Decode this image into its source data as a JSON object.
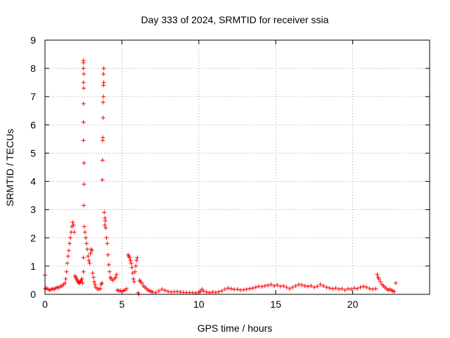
{
  "chart_data": {
    "type": "scatter",
    "title": "Day 333 of 2024, SRMTID for receiver ssia",
    "xlabel": "GPS time / hours",
    "ylabel": "SRMTID / TECUs",
    "xlim": [
      0,
      25
    ],
    "ylim": [
      0,
      9
    ],
    "x_ticks": [
      0,
      5,
      10,
      15,
      20
    ],
    "y_ticks": [
      0,
      1,
      2,
      3,
      4,
      5,
      6,
      7,
      8,
      9
    ],
    "grid": true,
    "marker": "plus",
    "color": "#ff0000",
    "series": [
      {
        "name": "SRMTID",
        "points": [
          [
            0.0,
            0.68
          ],
          [
            0.02,
            0.2
          ],
          [
            0.1,
            0.22
          ],
          [
            0.2,
            0.18
          ],
          [
            0.3,
            0.15
          ],
          [
            0.4,
            0.17
          ],
          [
            0.5,
            0.2
          ],
          [
            0.6,
            0.18
          ],
          [
            0.7,
            0.22
          ],
          [
            0.8,
            0.25
          ],
          [
            0.9,
            0.23
          ],
          [
            1.0,
            0.28
          ],
          [
            1.1,
            0.3
          ],
          [
            1.2,
            0.35
          ],
          [
            1.3,
            0.4
          ],
          [
            1.35,
            0.55
          ],
          [
            1.4,
            0.8
          ],
          [
            1.45,
            1.1
          ],
          [
            1.5,
            1.35
          ],
          [
            1.55,
            1.55
          ],
          [
            1.6,
            1.8
          ],
          [
            1.65,
            2.0
          ],
          [
            1.7,
            2.2
          ],
          [
            1.75,
            2.4
          ],
          [
            1.8,
            2.55
          ],
          [
            1.85,
            2.45
          ],
          [
            1.9,
            2.2
          ],
          [
            1.95,
            0.65
          ],
          [
            2.0,
            0.6
          ],
          [
            2.05,
            0.55
          ],
          [
            2.1,
            0.5
          ],
          [
            2.15,
            0.45
          ],
          [
            2.2,
            0.4
          ],
          [
            2.25,
            0.42
          ],
          [
            2.3,
            0.45
          ],
          [
            2.35,
            0.5
          ],
          [
            2.4,
            0.55
          ],
          [
            2.45,
            0.4
          ],
          [
            2.5,
            0.8
          ],
          [
            2.5,
            1.3
          ],
          [
            2.52,
            3.15
          ],
          [
            2.53,
            3.9
          ],
          [
            2.54,
            4.65
          ],
          [
            2.5,
            5.45
          ],
          [
            2.5,
            6.1
          ],
          [
            2.5,
            6.75
          ],
          [
            2.52,
            7.3
          ],
          [
            2.5,
            7.5
          ],
          [
            2.52,
            7.8
          ],
          [
            2.5,
            8.0
          ],
          [
            2.5,
            8.2
          ],
          [
            2.5,
            8.28
          ],
          [
            2.55,
            2.4
          ],
          [
            2.6,
            2.2
          ],
          [
            2.65,
            2.0
          ],
          [
            2.7,
            1.8
          ],
          [
            2.75,
            1.6
          ],
          [
            2.8,
            1.35
          ],
          [
            2.85,
            1.2
          ],
          [
            2.9,
            1.1
          ],
          [
            2.95,
            1.45
          ],
          [
            3.0,
            1.6
          ],
          [
            3.05,
            1.55
          ],
          [
            3.1,
            0.75
          ],
          [
            3.15,
            0.6
          ],
          [
            3.2,
            0.45
          ],
          [
            3.25,
            0.35
          ],
          [
            3.3,
            0.25
          ],
          [
            3.4,
            0.2
          ],
          [
            3.5,
            0.18
          ],
          [
            3.6,
            0.2
          ],
          [
            3.65,
            0.35
          ],
          [
            3.7,
            0.4
          ],
          [
            3.72,
            4.05
          ],
          [
            3.74,
            4.75
          ],
          [
            3.75,
            5.45
          ],
          [
            3.76,
            5.55
          ],
          [
            3.78,
            6.25
          ],
          [
            3.78,
            6.8
          ],
          [
            3.8,
            7.0
          ],
          [
            3.8,
            7.4
          ],
          [
            3.82,
            7.5
          ],
          [
            3.8,
            7.8
          ],
          [
            3.82,
            8.0
          ],
          [
            3.85,
            2.9
          ],
          [
            3.88,
            2.45
          ],
          [
            3.9,
            2.7
          ],
          [
            3.92,
            2.6
          ],
          [
            3.95,
            2.35
          ],
          [
            4.0,
            2.0
          ],
          [
            4.05,
            1.8
          ],
          [
            4.1,
            1.4
          ],
          [
            4.15,
            1.05
          ],
          [
            4.2,
            0.8
          ],
          [
            4.25,
            0.6
          ],
          [
            4.3,
            0.55
          ],
          [
            4.4,
            0.5
          ],
          [
            4.5,
            0.55
          ],
          [
            4.6,
            0.6
          ],
          [
            4.65,
            0.7
          ],
          [
            4.7,
            0.15
          ],
          [
            4.8,
            0.12
          ],
          [
            4.9,
            0.13
          ],
          [
            5.0,
            0.1
          ],
          [
            5.1,
            0.13
          ],
          [
            5.2,
            0.15
          ],
          [
            5.3,
            0.2
          ],
          [
            5.4,
            1.4
          ],
          [
            5.45,
            1.35
          ],
          [
            5.5,
            1.3
          ],
          [
            5.55,
            1.2
          ],
          [
            5.6,
            1.1
          ],
          [
            5.65,
            0.95
          ],
          [
            5.7,
            0.75
          ],
          [
            5.75,
            0.55
          ],
          [
            5.8,
            0.45
          ],
          [
            5.85,
            0.8
          ],
          [
            5.9,
            1.0
          ],
          [
            5.95,
            1.2
          ],
          [
            6.0,
            1.3
          ],
          [
            6.05,
            0.05
          ],
          [
            6.1,
            0.0
          ],
          [
            6.15,
            0.5
          ],
          [
            6.2,
            0.45
          ],
          [
            6.3,
            0.4
          ],
          [
            6.4,
            0.3
          ],
          [
            6.5,
            0.25
          ],
          [
            6.6,
            0.2
          ],
          [
            6.7,
            0.15
          ],
          [
            6.8,
            0.12
          ],
          [
            6.9,
            0.1
          ],
          [
            7.0,
            0.08
          ],
          [
            7.2,
            0.06
          ],
          [
            7.4,
            0.12
          ],
          [
            7.6,
            0.18
          ],
          [
            7.8,
            0.14
          ],
          [
            8.0,
            0.1
          ],
          [
            8.2,
            0.08
          ],
          [
            8.4,
            0.09
          ],
          [
            8.6,
            0.1
          ],
          [
            8.8,
            0.08
          ],
          [
            9.0,
            0.07
          ],
          [
            9.2,
            0.06
          ],
          [
            9.4,
            0.07
          ],
          [
            9.6,
            0.06
          ],
          [
            9.8,
            0.05
          ],
          [
            10.0,
            0.07
          ],
          [
            10.1,
            0.1
          ],
          [
            10.2,
            0.18
          ],
          [
            10.3,
            0.12
          ],
          [
            10.5,
            0.08
          ],
          [
            10.7,
            0.06
          ],
          [
            10.9,
            0.08
          ],
          [
            11.1,
            0.07
          ],
          [
            11.3,
            0.09
          ],
          [
            11.5,
            0.12
          ],
          [
            11.7,
            0.18
          ],
          [
            11.9,
            0.22
          ],
          [
            12.1,
            0.2
          ],
          [
            12.3,
            0.17
          ],
          [
            12.5,
            0.18
          ],
          [
            12.7,
            0.15
          ],
          [
            12.9,
            0.16
          ],
          [
            13.1,
            0.18
          ],
          [
            13.3,
            0.2
          ],
          [
            13.5,
            0.22
          ],
          [
            13.7,
            0.25
          ],
          [
            13.9,
            0.28
          ],
          [
            14.1,
            0.27
          ],
          [
            14.3,
            0.3
          ],
          [
            14.5,
            0.32
          ],
          [
            14.7,
            0.35
          ],
          [
            14.9,
            0.3
          ],
          [
            15.1,
            0.33
          ],
          [
            15.3,
            0.28
          ],
          [
            15.5,
            0.3
          ],
          [
            15.7,
            0.25
          ],
          [
            15.9,
            0.2
          ],
          [
            16.1,
            0.25
          ],
          [
            16.3,
            0.3
          ],
          [
            16.5,
            0.35
          ],
          [
            16.7,
            0.33
          ],
          [
            16.9,
            0.3
          ],
          [
            17.1,
            0.28
          ],
          [
            17.3,
            0.3
          ],
          [
            17.5,
            0.25
          ],
          [
            17.7,
            0.28
          ],
          [
            17.9,
            0.35
          ],
          [
            18.1,
            0.3
          ],
          [
            18.3,
            0.25
          ],
          [
            18.5,
            0.22
          ],
          [
            18.7,
            0.2
          ],
          [
            18.9,
            0.22
          ],
          [
            19.1,
            0.18
          ],
          [
            19.3,
            0.2
          ],
          [
            19.5,
            0.15
          ],
          [
            19.7,
            0.2
          ],
          [
            19.9,
            0.18
          ],
          [
            20.1,
            0.22
          ],
          [
            20.3,
            0.2
          ],
          [
            20.5,
            0.25
          ],
          [
            20.7,
            0.28
          ],
          [
            20.9,
            0.25
          ],
          [
            21.1,
            0.2
          ],
          [
            21.3,
            0.18
          ],
          [
            21.5,
            0.2
          ],
          [
            21.6,
            0.7
          ],
          [
            21.65,
            0.6
          ],
          [
            21.7,
            0.55
          ],
          [
            21.8,
            0.45
          ],
          [
            21.9,
            0.35
          ],
          [
            22.0,
            0.3
          ],
          [
            22.1,
            0.25
          ],
          [
            22.2,
            0.2
          ],
          [
            22.3,
            0.15
          ],
          [
            22.4,
            0.18
          ],
          [
            22.5,
            0.15
          ],
          [
            22.6,
            0.12
          ],
          [
            22.7,
            0.1
          ],
          [
            22.8,
            0.4
          ]
        ]
      }
    ]
  }
}
